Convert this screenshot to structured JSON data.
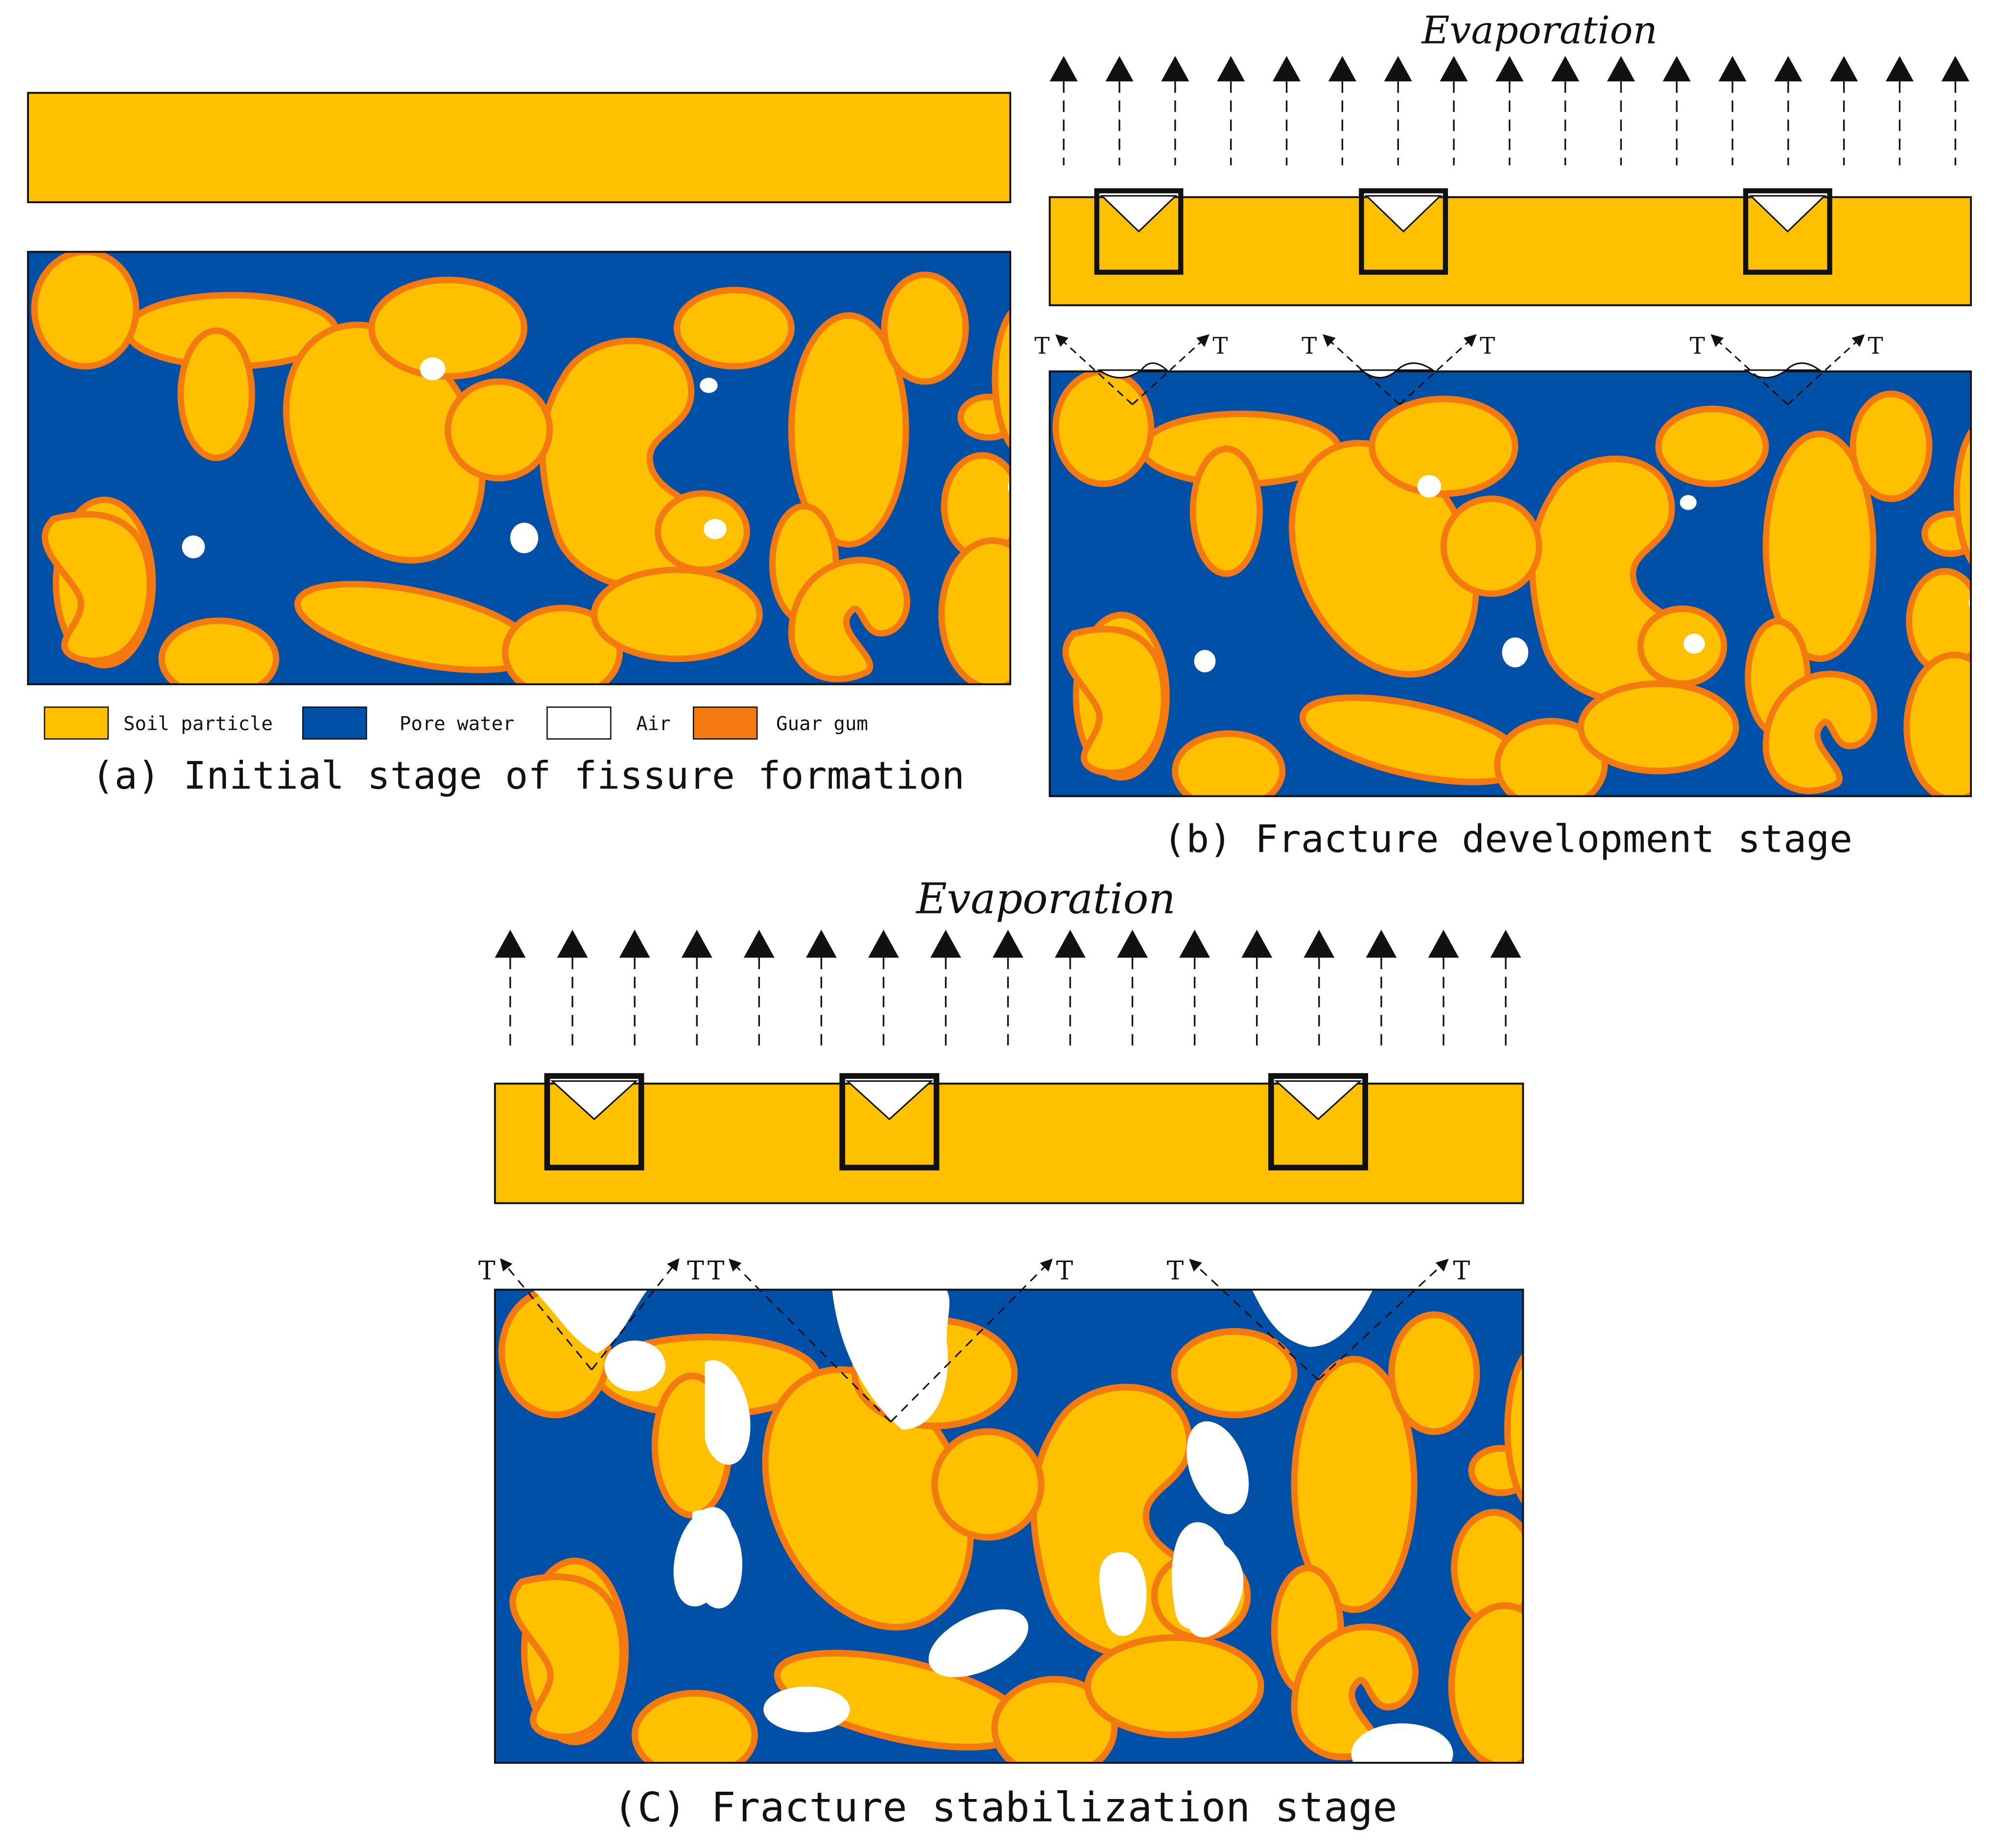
{
  "colors": {
    "soil": "#FFC000",
    "pore_water": "#0050A8",
    "air": "#FFFFFF",
    "guar_gum": "#F47A0F",
    "outline": "#111111"
  },
  "panel_a": {
    "caption": "(a) Initial stage of fissure formation",
    "legend": [
      {
        "label": "Soil particle",
        "color_key": "soil"
      },
      {
        "label": "Pore water",
        "color_key": "pore_water"
      },
      {
        "label": "Air",
        "color_key": "air"
      },
      {
        "label": "Guar gum",
        "color_key": "guar_gum"
      }
    ]
  },
  "panel_b": {
    "evaporation_label": "Evaporation",
    "caption": "(b) Fracture development stage",
    "tension_label": "T"
  },
  "panel_c": {
    "evaporation_label": "Evaporation",
    "caption": "(C) Fracture stabilization stage",
    "tension_label": "T"
  }
}
